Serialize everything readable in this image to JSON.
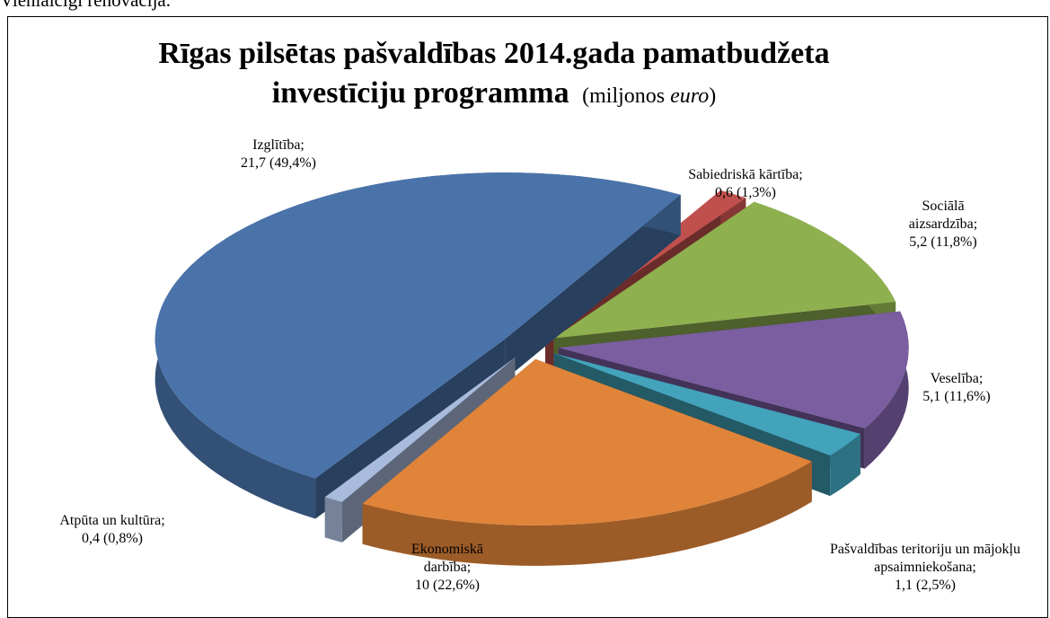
{
  "page_text": "Vienlaicīgi renovācija.",
  "chart_data": {
    "type": "pie3d",
    "title": "Rīgas pilsētas pašvaldības 2014.gada pamatbudžeta investīciju programma",
    "unit_note": [
      "(miljonos",
      "euro",
      ")"
    ],
    "categories": [
      "Sabiedriskā kārtība;",
      "Sociālā aizsardzība;",
      "Veselība;",
      "Pašvaldības teritoriju un mājokļu apsaimniekošana;",
      "Ekonomiskā darbība;",
      "Atpūta un kultūra;",
      "Izglītība;"
    ],
    "values": [
      0.6,
      5.2,
      5.1,
      1.1,
      10,
      0.4,
      21.7
    ],
    "value_labels": [
      "0,6 (1,3%)",
      "5,2 (11,8%)",
      "5,1 (11,6%)",
      "1,1 (2,5%)",
      "10 (22,6%)",
      "0,4 (0,8%)",
      "21,7 (49,4%)"
    ],
    "colors": [
      "#c0504d",
      "#8fb04f",
      "#7a5ea0",
      "#43a3bb",
      "#e0843a",
      "#a9bbdd",
      "#4a73aa"
    ]
  }
}
